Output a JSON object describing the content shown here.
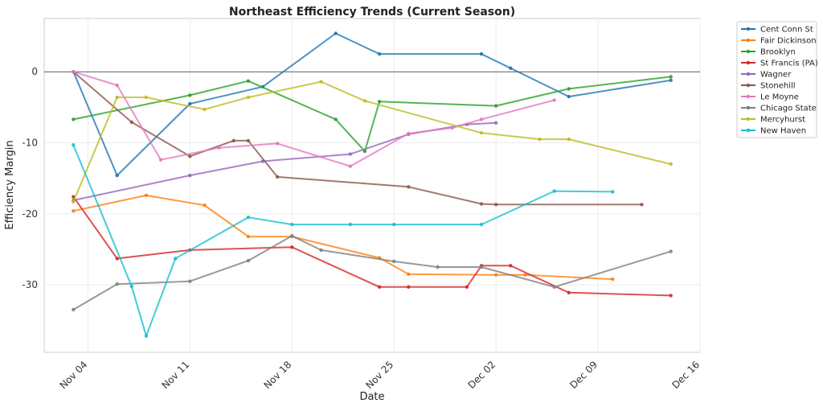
{
  "chart_data": {
    "type": "line",
    "title": "Northeast Efficiency Trends (Current Season)",
    "xlabel": "Date",
    "ylabel": "Efficiency Margin",
    "x_ticks": [
      "Nov 04",
      "Nov 11",
      "Nov 18",
      "Nov 25",
      "Dec 02",
      "Dec 09",
      "Dec 16"
    ],
    "y_ticks": [
      "-30",
      "-20",
      "-10",
      "0"
    ],
    "xlim": [
      "2024-11-01",
      "2024-12-16"
    ],
    "ylim": [
      -39.5,
      7.5
    ],
    "grid": true,
    "reference_line_y": 0,
    "legend_position": "outside-right-top",
    "series": [
      {
        "name": "Cent Conn St",
        "color": "#1f77b4",
        "points": [
          [
            "2024-11-03",
            0
          ],
          [
            "2024-11-06",
            -14.6
          ],
          [
            "2024-11-11",
            -4.5
          ],
          [
            "2024-11-16",
            -2.1
          ],
          [
            "2024-11-21",
            5.4
          ],
          [
            "2024-11-24",
            2.5
          ],
          [
            "2024-12-01",
            2.5
          ],
          [
            "2024-12-03",
            0.5
          ],
          [
            "2024-12-07",
            -3.5
          ],
          [
            "2024-12-14",
            -1.2
          ]
        ]
      },
      {
        "name": "Fair Dickinson",
        "color": "#ff7f0e",
        "points": [
          [
            "2024-11-03",
            -19.6
          ],
          [
            "2024-11-08",
            -17.4
          ],
          [
            "2024-11-12",
            -18.8
          ],
          [
            "2024-11-15",
            -23.2
          ],
          [
            "2024-11-18",
            -23.2
          ],
          [
            "2024-11-24",
            -26.2
          ],
          [
            "2024-11-26",
            -28.5
          ],
          [
            "2024-12-02",
            -28.6
          ],
          [
            "2024-12-04",
            -28.6
          ],
          [
            "2024-12-10",
            -29.2
          ]
        ]
      },
      {
        "name": "Brooklyn",
        "color": "#2ca02c",
        "points": [
          [
            "2024-11-03",
            -6.7
          ],
          [
            "2024-11-11",
            -3.3
          ],
          [
            "2024-11-15",
            -1.3
          ],
          [
            "2024-11-21",
            -6.7
          ],
          [
            "2024-11-23",
            -11.2
          ],
          [
            "2024-11-24",
            -4.2
          ],
          [
            "2024-12-02",
            -4.8
          ],
          [
            "2024-12-07",
            -2.4
          ],
          [
            "2024-12-14",
            -0.7
          ]
        ]
      },
      {
        "name": "St Francis (PA)",
        "color": "#d62728",
        "points": [
          [
            "2024-11-03",
            -17.6
          ],
          [
            "2024-11-06",
            -26.3
          ],
          [
            "2024-11-11",
            -25.1
          ],
          [
            "2024-11-18",
            -24.7
          ],
          [
            "2024-11-24",
            -30.3
          ],
          [
            "2024-11-26",
            -30.3
          ],
          [
            "2024-11-30",
            -30.3
          ],
          [
            "2024-12-01",
            -27.3
          ],
          [
            "2024-12-03",
            -27.3
          ],
          [
            "2024-12-07",
            -31.1
          ],
          [
            "2024-12-14",
            -31.5
          ]
        ]
      },
      {
        "name": "Wagner",
        "color": "#9467bd",
        "points": [
          [
            "2024-11-03",
            -18.1
          ],
          [
            "2024-11-11",
            -14.6
          ],
          [
            "2024-11-16",
            -12.6
          ],
          [
            "2024-11-22",
            -11.6
          ],
          [
            "2024-11-26",
            -8.8
          ],
          [
            "2024-11-30",
            -7.4
          ],
          [
            "2024-12-02",
            -7.2
          ]
        ]
      },
      {
        "name": "Stonehill",
        "color": "#8c564b",
        "points": [
          [
            "2024-11-03",
            0
          ],
          [
            "2024-11-07",
            -7.1
          ],
          [
            "2024-11-11",
            -11.9
          ],
          [
            "2024-11-14",
            -9.7
          ],
          [
            "2024-11-15",
            -9.7
          ],
          [
            "2024-11-17",
            -14.8
          ],
          [
            "2024-11-26",
            -16.2
          ],
          [
            "2024-12-01",
            -18.6
          ],
          [
            "2024-12-02",
            -18.7
          ],
          [
            "2024-12-12",
            -18.7
          ]
        ]
      },
      {
        "name": "Le Moyne",
        "color": "#e377c2",
        "points": [
          [
            "2024-11-03",
            0
          ],
          [
            "2024-11-06",
            -1.9
          ],
          [
            "2024-11-09",
            -12.4
          ],
          [
            "2024-11-13",
            -10.7
          ],
          [
            "2024-11-17",
            -10.1
          ],
          [
            "2024-11-22",
            -13.3
          ],
          [
            "2024-11-26",
            -8.7
          ],
          [
            "2024-11-29",
            -7.9
          ],
          [
            "2024-12-01",
            -6.7
          ],
          [
            "2024-12-06",
            -4.0
          ]
        ]
      },
      {
        "name": "Chicago State",
        "color": "#7f7f7f",
        "points": [
          [
            "2024-11-03",
            -33.5
          ],
          [
            "2024-11-06",
            -29.9
          ],
          [
            "2024-11-11",
            -29.5
          ],
          [
            "2024-11-15",
            -26.6
          ],
          [
            "2024-11-18",
            -23.1
          ],
          [
            "2024-11-20",
            -25.1
          ],
          [
            "2024-11-25",
            -26.7
          ],
          [
            "2024-11-28",
            -27.5
          ],
          [
            "2024-12-01",
            -27.5
          ],
          [
            "2024-12-06",
            -30.3
          ],
          [
            "2024-12-14",
            -25.3
          ]
        ]
      },
      {
        "name": "Mercyhurst",
        "color": "#bcbd22",
        "points": [
          [
            "2024-11-03",
            -18.3
          ],
          [
            "2024-11-06",
            -3.6
          ],
          [
            "2024-11-08",
            -3.6
          ],
          [
            "2024-11-12",
            -5.3
          ],
          [
            "2024-11-15",
            -3.6
          ],
          [
            "2024-11-20",
            -1.4
          ],
          [
            "2024-11-23",
            -4.1
          ],
          [
            "2024-12-01",
            -8.6
          ],
          [
            "2024-12-05",
            -9.5
          ],
          [
            "2024-12-07",
            -9.5
          ],
          [
            "2024-12-14",
            -13.0
          ]
        ]
      },
      {
        "name": "New Haven",
        "color": "#17becf",
        "points": [
          [
            "2024-11-03",
            -10.3
          ],
          [
            "2024-11-07",
            -30.2
          ],
          [
            "2024-11-08",
            -37.2
          ],
          [
            "2024-11-10",
            -26.3
          ],
          [
            "2024-11-15",
            -20.5
          ],
          [
            "2024-11-18",
            -21.5
          ],
          [
            "2024-11-22",
            -21.5
          ],
          [
            "2024-11-25",
            -21.5
          ],
          [
            "2024-12-01",
            -21.5
          ],
          [
            "2024-12-06",
            -16.8
          ],
          [
            "2024-12-10",
            -16.9
          ]
        ]
      }
    ]
  }
}
